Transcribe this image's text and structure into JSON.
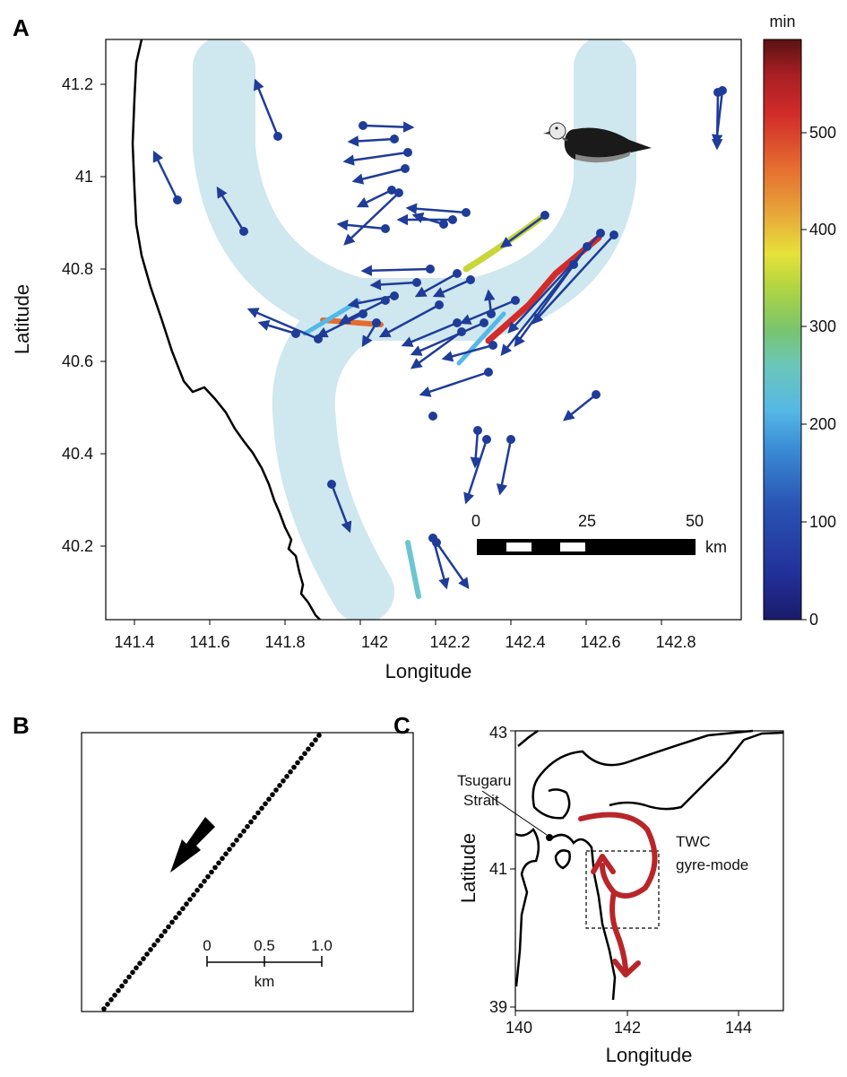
{
  "panel_a": {
    "letter": "A",
    "xlabel": "Longitude",
    "ylabel": "Latitude",
    "xticks": [
      "141.4",
      "141.6",
      "141.8",
      "142",
      "142.2",
      "142.4",
      "142.6",
      "142.8"
    ],
    "yticks": [
      "40.2",
      "40.4",
      "40.6",
      "40.8",
      "41",
      "41.2"
    ],
    "colorbar": {
      "unit": "min",
      "ticks": [
        "0",
        "100",
        "200",
        "300",
        "400",
        "500"
      ]
    },
    "scalebar": {
      "labels": [
        "0",
        "25",
        "50"
      ],
      "unit": "km"
    },
    "icon": "shearwater-bird-icon"
  },
  "panel_b": {
    "letter": "B",
    "scalebar": {
      "labels": [
        "0",
        "0.5",
        "1.0"
      ],
      "unit": "km"
    },
    "icon": "direction-arrow-icon"
  },
  "panel_c": {
    "letter": "C",
    "xlabel": "Longitude",
    "ylabel": "Latitude",
    "xticks": [
      "140",
      "142",
      "144"
    ],
    "yticks": [
      "39",
      "41",
      "43"
    ],
    "strait_label": [
      "Tsugaru",
      "Strait"
    ],
    "current_label": [
      "TWC",
      "gyre-mode"
    ]
  },
  "colors": {
    "gyre_band": "#cfe7ee",
    "track_blue": "#1f3c99",
    "current_red": "#b8262a",
    "coast": "#000000"
  }
}
